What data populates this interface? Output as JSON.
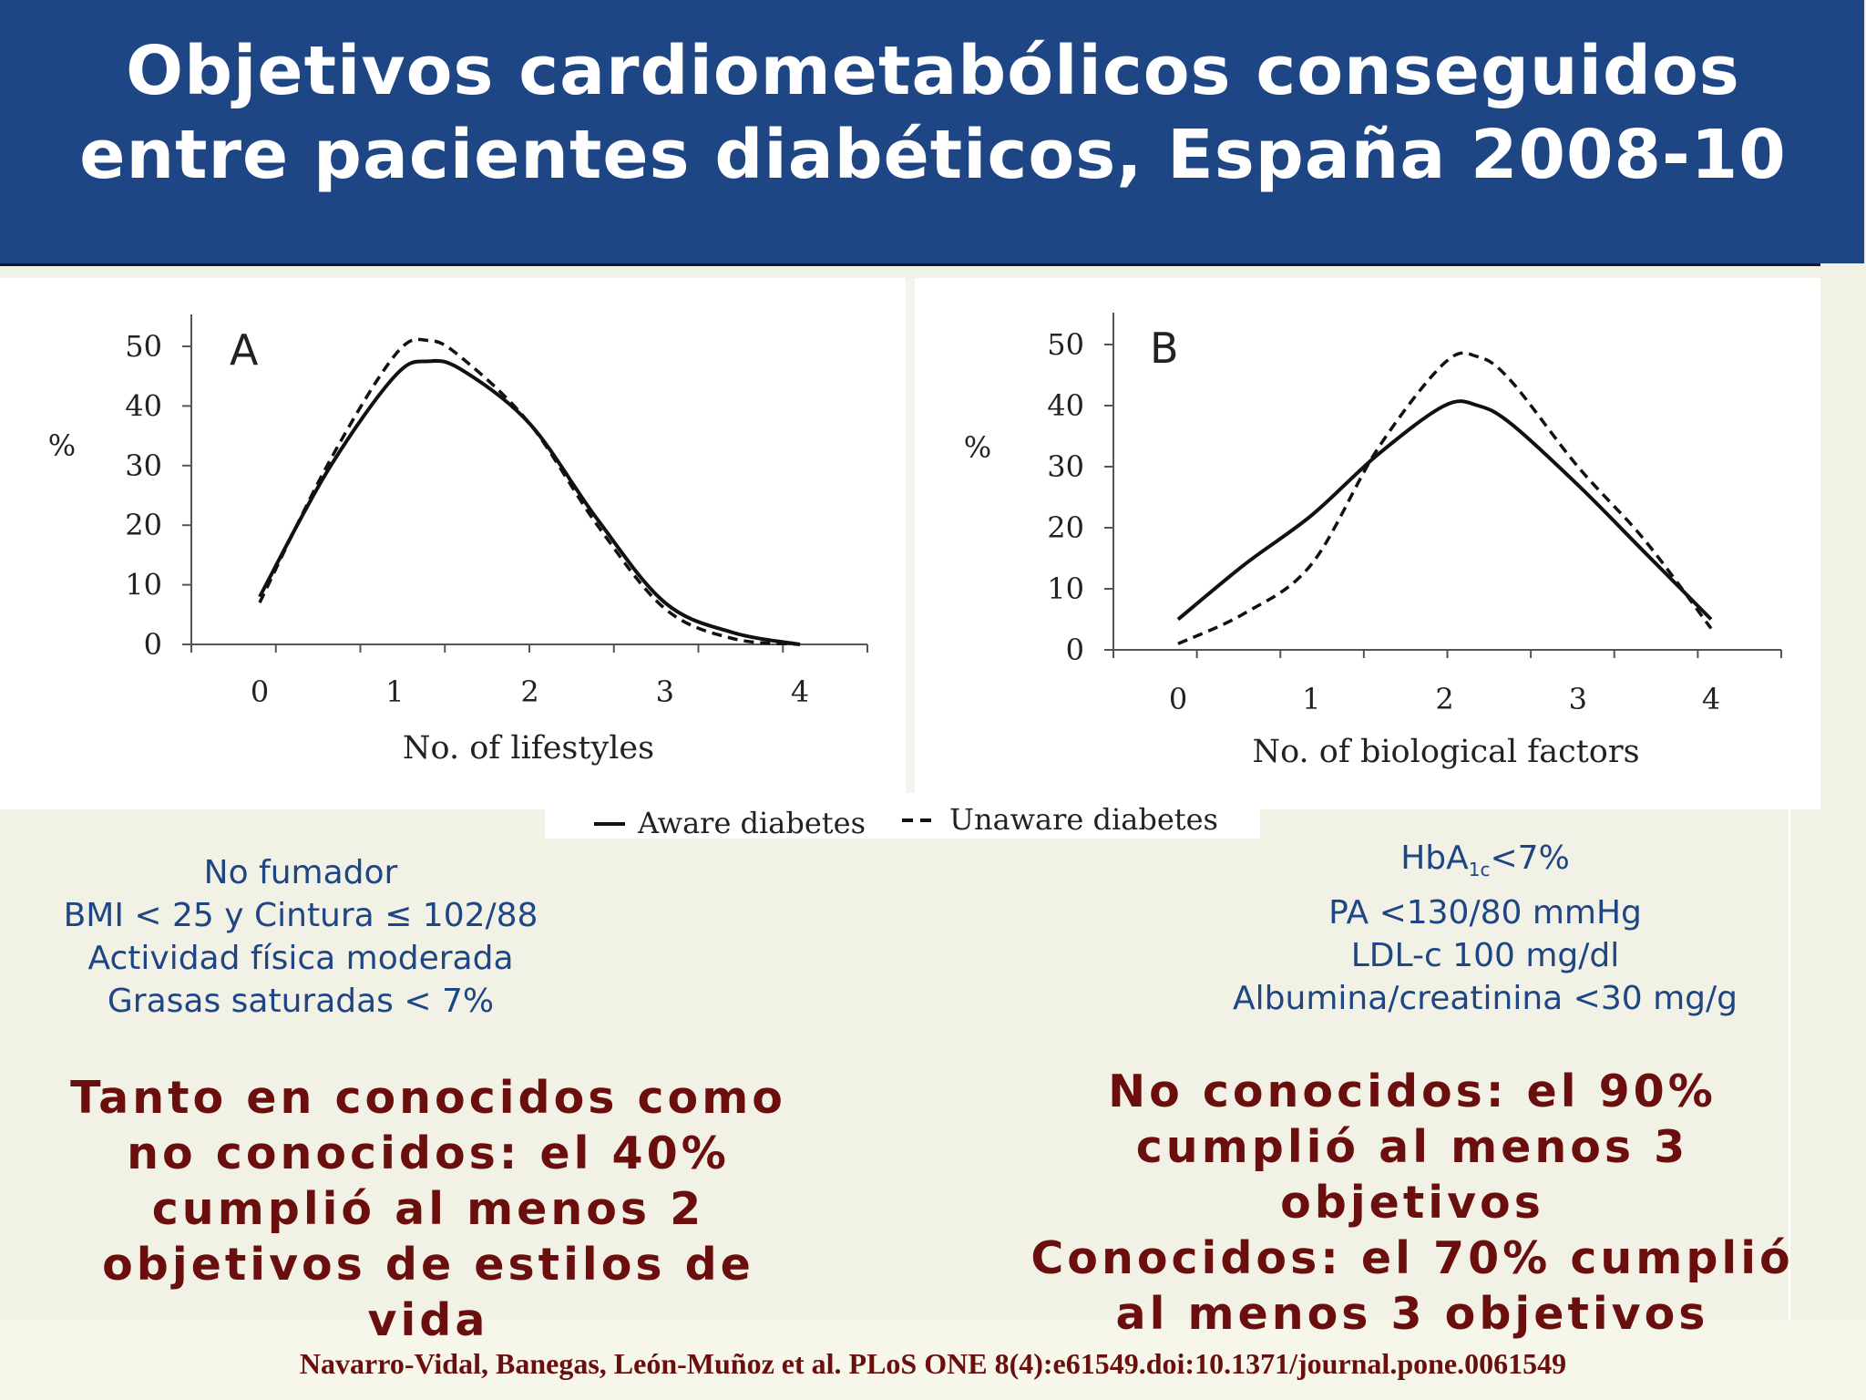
{
  "title": {
    "line1": "Objetivos cardiometabólicos conseguidos",
    "line2": "entre pacientes diabéticos, España 2008-10"
  },
  "chart_data": [
    {
      "type": "line",
      "panel": "A",
      "xlabel": "No. of lifestyles",
      "ylabel": "%",
      "xlim": [
        0,
        4
      ],
      "ylim": [
        0,
        50
      ],
      "x_ticks": [
        0,
        1,
        2,
        3,
        4
      ],
      "y_ticks": [
        0,
        10,
        20,
        30,
        40,
        50
      ],
      "grid": false,
      "series": [
        {
          "name": "Aware diabetes",
          "style": "solid",
          "x": [
            0,
            0.5,
            1,
            1.25,
            1.5,
            2,
            2.5,
            3,
            3.5,
            4
          ],
          "y": [
            8,
            29,
            45,
            47.5,
            46,
            37,
            21,
            7,
            2,
            0
          ]
        },
        {
          "name": "Unaware diabetes",
          "style": "dashed",
          "x": [
            0,
            0.5,
            1,
            1.25,
            1.5,
            2,
            2.5,
            3,
            3.5,
            4
          ],
          "y": [
            7,
            30,
            48.5,
            51,
            48,
            37,
            20,
            6,
            1,
            0
          ]
        }
      ]
    },
    {
      "type": "line",
      "panel": "B",
      "xlabel": "No. of biological factors",
      "ylabel": "%",
      "xlim": [
        0,
        4
      ],
      "ylim": [
        0,
        50
      ],
      "x_ticks": [
        0,
        1,
        2,
        3,
        4
      ],
      "y_ticks": [
        0,
        10,
        20,
        30,
        40,
        50
      ],
      "grid": false,
      "series": [
        {
          "name": "Aware diabetes",
          "style": "solid",
          "x": [
            0,
            0.5,
            1,
            1.5,
            2,
            2.25,
            2.5,
            3,
            3.5,
            4
          ],
          "y": [
            5,
            14,
            22,
            32,
            40,
            40,
            37,
            27,
            16,
            5
          ]
        },
        {
          "name": "Unaware diabetes",
          "style": "dashed",
          "x": [
            0,
            0.5,
            1,
            1.5,
            2,
            2.25,
            2.5,
            3,
            3.5,
            4
          ],
          "y": [
            1,
            6,
            14,
            33,
            47,
            48,
            44,
            30,
            18,
            3.5
          ]
        }
      ]
    }
  ],
  "legend": {
    "aware": "Aware diabetes",
    "unaware": "Unaware diabetes"
  },
  "left_criteria": {
    "line1": "No fumador",
    "line2": "BMI < 25 y Cintura ≤ 102/88",
    "line3": "Actividad física moderada",
    "line4": "Grasas saturadas < 7%"
  },
  "right_criteria": {
    "hba_main": "HbA",
    "hba_sub": "1c",
    "hba_rest": "<7%",
    "line2": "PA <130/80 mmHg",
    "line3": "LDL-c 100 mg/dl",
    "line4": "Albumina/creatinina <30 mg/g"
  },
  "left_conclusion": {
    "line1": "Tanto en conocidos como",
    "line2": "no conocidos: el 40%",
    "line3": "cumplió al menos 2",
    "line4": "objetivos de estilos de",
    "line5": "vida"
  },
  "right_conclusion": {
    "line1": "No conocidos: el 90%",
    "line2": "cumplió al menos 3",
    "line3": "objetivos",
    "line4": "Conocidos: el 70% cumplió",
    "line5": "al menos 3 objetivos"
  },
  "citation": "Navarro-Vidal, Banegas, León-Muñoz et al. PLoS ONE 8(4):e61549.doi:10.1371/journal.pone.0061549"
}
